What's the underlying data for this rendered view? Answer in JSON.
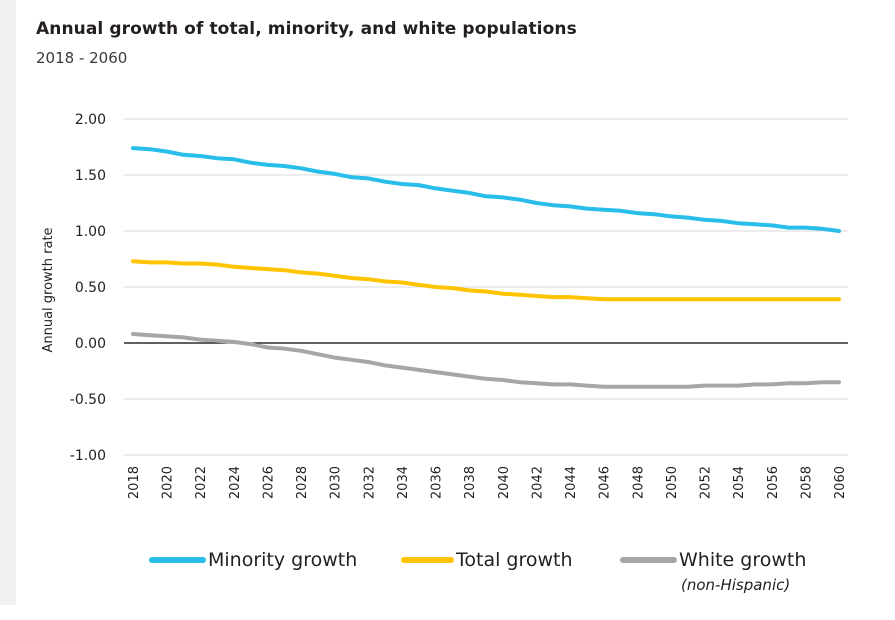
{
  "header": {
    "title": "Annual growth of total, minority, and white populations",
    "subtitle": "2018 - 2060"
  },
  "colors": {
    "minority": "#29bdea",
    "total": "#ffc400",
    "white": "#a6a6a6",
    "grid": "#d9d9d9",
    "zero_line": "#000000"
  },
  "chart_data": {
    "type": "line",
    "title": "Annual growth of total, minority, and white populations",
    "subtitle": "2018 - 2060",
    "xlabel": "",
    "ylabel": "Annual growth rate",
    "ylim": [
      -1.0,
      2.0
    ],
    "yticks": [
      "2.00",
      "1.50",
      "1.00",
      "0.50",
      "0.00",
      "-0.50",
      "-1.00"
    ],
    "ytick_values": [
      2.0,
      1.5,
      1.0,
      0.5,
      0.0,
      -0.5,
      -1.0
    ],
    "x": [
      2018,
      2019,
      2020,
      2021,
      2022,
      2023,
      2024,
      2025,
      2026,
      2027,
      2028,
      2029,
      2030,
      2031,
      2032,
      2033,
      2034,
      2035,
      2036,
      2037,
      2038,
      2039,
      2040,
      2041,
      2042,
      2043,
      2044,
      2045,
      2046,
      2047,
      2048,
      2049,
      2050,
      2051,
      2052,
      2053,
      2054,
      2055,
      2056,
      2057,
      2058,
      2059,
      2060
    ],
    "xticks": [
      "2018",
      "2020",
      "2022",
      "2024",
      "2026",
      "2028",
      "2030",
      "2032",
      "2034",
      "2036",
      "2038",
      "2040",
      "2042",
      "2044",
      "2046",
      "2048",
      "2050",
      "2052",
      "2054",
      "2056",
      "2058",
      "2060"
    ],
    "xtick_values": [
      2018,
      2020,
      2022,
      2024,
      2026,
      2028,
      2030,
      2032,
      2034,
      2036,
      2038,
      2040,
      2042,
      2044,
      2046,
      2048,
      2050,
      2052,
      2054,
      2056,
      2058,
      2060
    ],
    "grid": true,
    "legend_position": "bottom",
    "series": [
      {
        "name": "Minority growth",
        "key": "minority",
        "values": [
          1.74,
          1.73,
          1.71,
          1.68,
          1.67,
          1.65,
          1.64,
          1.61,
          1.59,
          1.58,
          1.56,
          1.53,
          1.51,
          1.48,
          1.47,
          1.44,
          1.42,
          1.41,
          1.38,
          1.36,
          1.34,
          1.31,
          1.3,
          1.28,
          1.25,
          1.23,
          1.22,
          1.2,
          1.19,
          1.18,
          1.16,
          1.15,
          1.13,
          1.12,
          1.1,
          1.09,
          1.07,
          1.06,
          1.05,
          1.03,
          1.03,
          1.02,
          1.0
        ]
      },
      {
        "name": "Total growth",
        "key": "total",
        "values": [
          0.73,
          0.72,
          0.72,
          0.71,
          0.71,
          0.7,
          0.68,
          0.67,
          0.66,
          0.65,
          0.63,
          0.62,
          0.6,
          0.58,
          0.57,
          0.55,
          0.54,
          0.52,
          0.5,
          0.49,
          0.47,
          0.46,
          0.44,
          0.43,
          0.42,
          0.41,
          0.41,
          0.4,
          0.39,
          0.39,
          0.39,
          0.39,
          0.39,
          0.39,
          0.39,
          0.39,
          0.39,
          0.39,
          0.39,
          0.39,
          0.39,
          0.39,
          0.39
        ]
      },
      {
        "name": "White growth",
        "sublabel": "(non-Hispanic)",
        "key": "white",
        "values": [
          0.08,
          0.07,
          0.06,
          0.05,
          0.03,
          0.02,
          0.01,
          -0.01,
          -0.04,
          -0.05,
          -0.07,
          -0.1,
          -0.13,
          -0.15,
          -0.17,
          -0.2,
          -0.22,
          -0.24,
          -0.26,
          -0.28,
          -0.3,
          -0.32,
          -0.33,
          -0.35,
          -0.36,
          -0.37,
          -0.37,
          -0.38,
          -0.39,
          -0.39,
          -0.39,
          -0.39,
          -0.39,
          -0.39,
          -0.38,
          -0.38,
          -0.38,
          -0.37,
          -0.37,
          -0.36,
          -0.36,
          -0.35,
          -0.35
        ]
      }
    ]
  },
  "legend": {
    "minority_label": "Minority growth",
    "total_label": "Total growth",
    "white_label": "White growth",
    "white_sublabel": "(non-Hispanic)"
  }
}
